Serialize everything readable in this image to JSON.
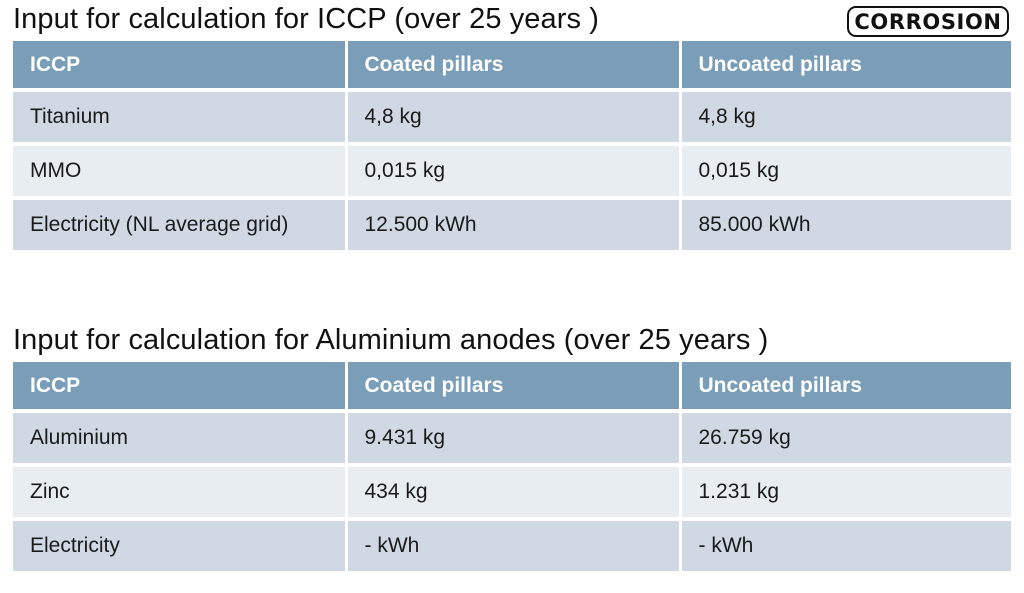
{
  "logo": {
    "text": "CORROSION"
  },
  "sections": [
    {
      "title": "Input for calculation for ICCP (over 25 years )",
      "headers": [
        "ICCP",
        "Coated pillars",
        "Uncoated pillars"
      ],
      "rows": [
        [
          "Titanium",
          "4,8 kg",
          "4,8 kg"
        ],
        [
          "MMO",
          "0,015 kg",
          "0,015 kg"
        ],
        [
          "Electricity (NL average grid)",
          "12.500 kWh",
          "85.000 kWh"
        ]
      ]
    },
    {
      "title": "Input for calculation for Aluminium anodes (over 25 years )",
      "headers": [
        "ICCP",
        "Coated pillars",
        "Uncoated pillars"
      ],
      "rows": [
        [
          "Aluminium",
          "9.431 kg",
          "26.759 kg"
        ],
        [
          "Zinc",
          "434 kg",
          "1.231 kg"
        ],
        [
          "Electricity",
          "- kWh",
          "- kWh"
        ]
      ]
    }
  ],
  "colors": {
    "header_bg": "#7a9eb7",
    "row_dark": "#d0d9e3",
    "row_light": "#e8edf2"
  }
}
